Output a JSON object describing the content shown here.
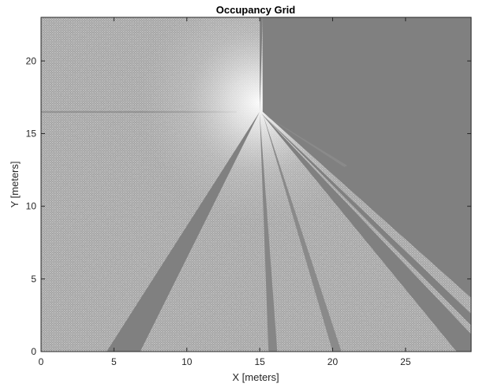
{
  "chart_data": {
    "type": "heatmap",
    "title": "Occupancy Grid",
    "xlabel": "X [meters]",
    "ylabel": "Y [meters]",
    "xlim": [
      0,
      29.5
    ],
    "ylim": [
      0,
      23
    ],
    "xticks": [
      0,
      5,
      10,
      15,
      20,
      25
    ],
    "yticks": [
      0,
      5,
      10,
      15,
      20
    ],
    "grid": false,
    "colormap": "gray",
    "sensor_origin": [
      15,
      16.5
    ],
    "regions": [
      {
        "kind": "unknown",
        "shade": "#808080",
        "polygon": [
          [
            15.2,
            16.5
          ],
          [
            15.2,
            23
          ],
          [
            29.5,
            23
          ],
          [
            29.5,
            3.7
          ]
        ]
      },
      {
        "kind": "unknown",
        "shade": "#808080",
        "polygon": [
          [
            15,
            16.5
          ],
          [
            4.5,
            0
          ],
          [
            6.8,
            0
          ]
        ]
      },
      {
        "kind": "unknown",
        "shade": "#808080",
        "polygon": [
          [
            15,
            16.5
          ],
          [
            15.2,
            23
          ],
          [
            15,
            23
          ]
        ]
      },
      {
        "kind": "unknown",
        "shade": "#808080",
        "polygon": [
          [
            15.1,
            16.4
          ],
          [
            29.5,
            1.8
          ],
          [
            29.5,
            2.6
          ]
        ]
      },
      {
        "kind": "unknown",
        "shade": "#808080",
        "polygon": [
          [
            15.1,
            16.4
          ],
          [
            28.5,
            0
          ],
          [
            29.5,
            0
          ],
          [
            29.5,
            1.2
          ]
        ]
      },
      {
        "kind": "unknown",
        "shade": "#868686",
        "polygon": [
          [
            15.0,
            16.4
          ],
          [
            15.6,
            0
          ],
          [
            16.2,
            0
          ]
        ]
      },
      {
        "kind": "unknown",
        "shade": "#8a8a8a",
        "polygon": [
          [
            15.2,
            16.4
          ],
          [
            20.0,
            0
          ],
          [
            20.6,
            0
          ]
        ]
      },
      {
        "kind": "unknown",
        "shade": "#8a8a8a",
        "polygon": [
          [
            15.3,
            16.3
          ],
          [
            21.0,
            12.8
          ],
          [
            20.8,
            12.7
          ]
        ]
      }
    ]
  }
}
